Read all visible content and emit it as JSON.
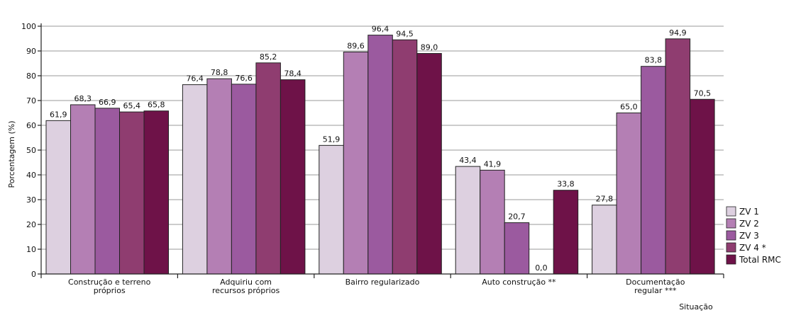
{
  "chart_data": {
    "type": "bar",
    "categories": [
      [
        "Construção e terreno",
        "próprios"
      ],
      [
        "Adquiriu com",
        "recursos próprios"
      ],
      [
        "Bairro regularizado"
      ],
      [
        "Auto construção **"
      ],
      [
        "Documentação",
        "regular ***"
      ]
    ],
    "series": [
      {
        "name": "ZV 1",
        "color": "#ddd0e0",
        "values": [
          61.9,
          76.4,
          51.9,
          43.4,
          27.8
        ],
        "labels": [
          "61,9",
          "76,4",
          "51,9",
          "43,4",
          "27,8"
        ]
      },
      {
        "name": "ZV 2",
        "color": "#b47fb4",
        "values": [
          68.3,
          78.8,
          89.6,
          41.9,
          65.0
        ],
        "labels": [
          "68,3",
          "78,8",
          "89,6",
          "41,9",
          "65,0"
        ]
      },
      {
        "name": "ZV 3",
        "color": "#9b5a9f",
        "values": [
          66.9,
          76.6,
          96.4,
          20.7,
          83.8
        ],
        "labels": [
          "66,9",
          "76,6",
          "96,4",
          "20,7",
          "83,8"
        ]
      },
      {
        "name": "ZV 4 *",
        "color": "#8f3d70",
        "values": [
          65.4,
          85.2,
          94.5,
          0.0,
          94.9
        ],
        "labels": [
          "65,4",
          "85,2",
          "94,5",
          "0,0",
          "94,9"
        ]
      },
      {
        "name": "Total RMC",
        "color": "#6e1248",
        "values": [
          65.8,
          78.4,
          89.0,
          33.8,
          70.5
        ],
        "labels": [
          "65,8",
          "78,4",
          "89,0",
          "33,8",
          "70,5"
        ]
      }
    ],
    "ylabel": "Porcentagem (%)",
    "xlabel": "Situação",
    "ylim": [
      0,
      100
    ],
    "yticks": [
      0,
      10,
      20,
      30,
      40,
      50,
      60,
      70,
      80,
      90,
      100
    ],
    "ytick_labels": [
      "0",
      "10",
      "20",
      "30",
      "40",
      "50",
      "60",
      "70",
      "80",
      "90",
      "100"
    ],
    "grid": true,
    "legend_position": "right"
  }
}
